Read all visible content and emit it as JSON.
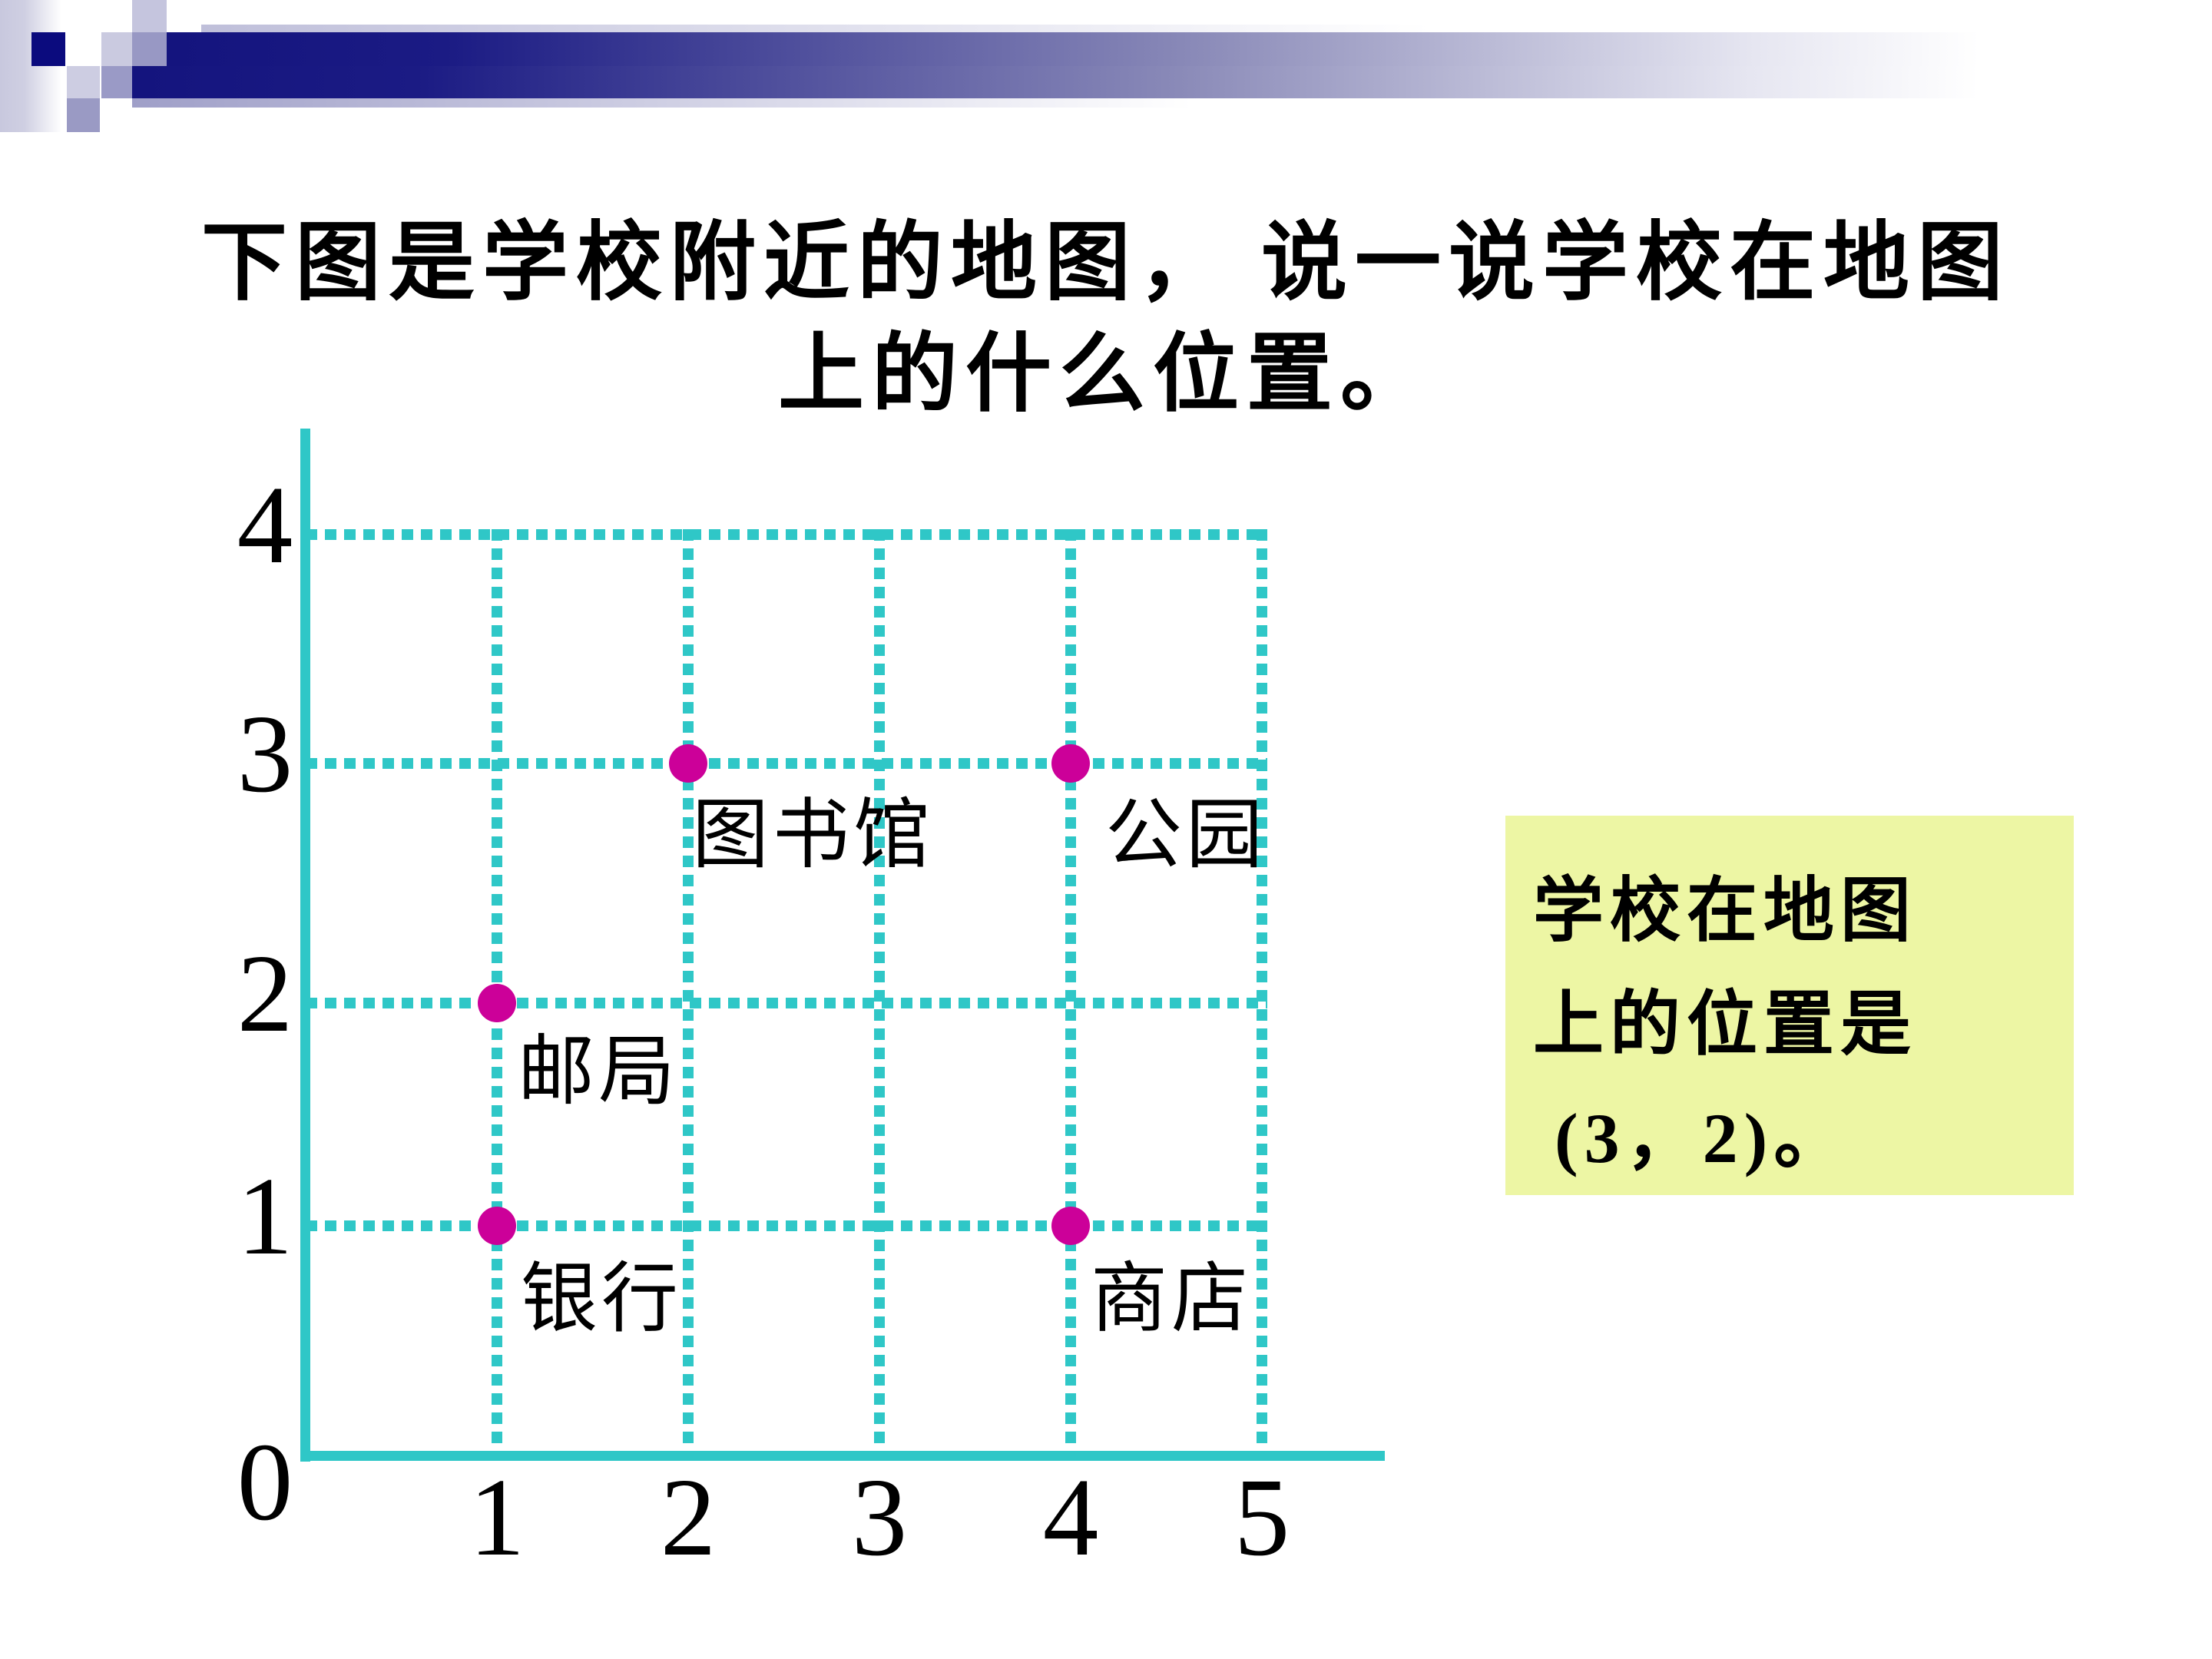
{
  "colors": {
    "teal_axis": "#2FC7C7",
    "magenta_point": "#CC0099",
    "header_navy": "#14147E",
    "answer_box_bg": "#EDF6A4",
    "text": "#000000"
  },
  "title": {
    "line1": "下图是学校附近的地图， 说一说学校在地图",
    "line2": "上的什么位置。"
  },
  "chart_data": {
    "type": "scatter",
    "title": "学校附近的地图",
    "points": [
      {
        "label": "图书馆",
        "x": 2,
        "y": 3
      },
      {
        "label": "公园",
        "x": 4,
        "y": 3
      },
      {
        "label": "邮局",
        "x": 1,
        "y": 2
      },
      {
        "label": "银行",
        "x": 1,
        "y": 1
      },
      {
        "label": "商店",
        "x": 4,
        "y": 1
      }
    ],
    "x_ticks": [
      "1",
      "2",
      "3",
      "4",
      "5"
    ],
    "y_ticks": [
      "4",
      "3",
      "2",
      "1"
    ],
    "origin_label": "0",
    "xlim": [
      0,
      5
    ],
    "ylim": [
      0,
      4
    ],
    "grid": "dotted",
    "legend": false,
    "axis_color": "#2FC7C7",
    "point_color": "#CC0099"
  },
  "answer_box": {
    "lines": [
      "学校在地图",
      "上的位置是",
      "(3，2)。"
    ]
  }
}
